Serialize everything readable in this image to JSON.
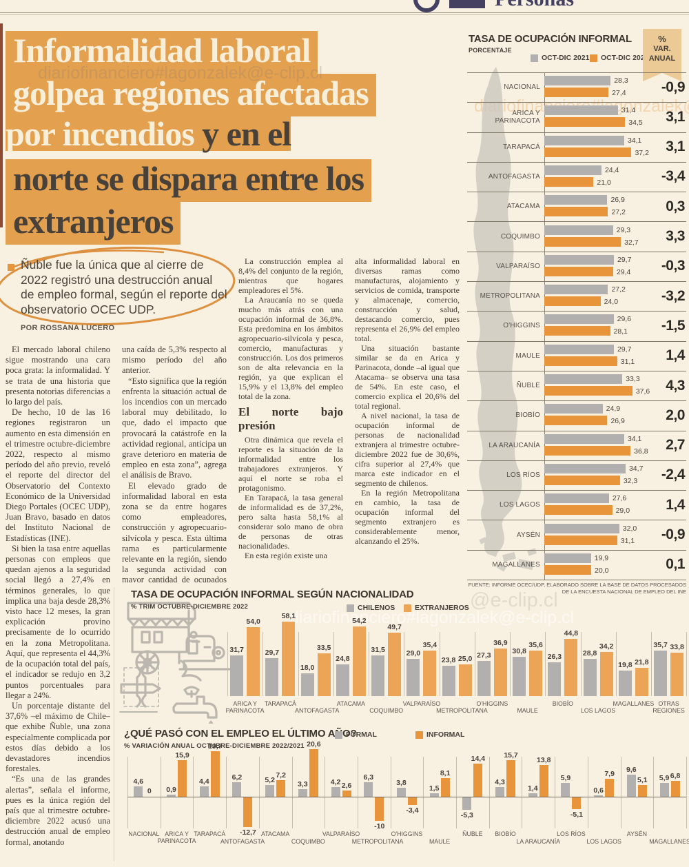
{
  "masthead": {
    "partial_text": "Personas"
  },
  "watermark": {
    "full": "diariofinanciero#lagonzalek@e-clip.cl",
    "short": "@e-clip.cl"
  },
  "colors": {
    "background": "#f8f1e2",
    "highlight": "#e3a04f",
    "bar_orange": "#e8943b",
    "bar_gray": "#b2b0ae",
    "banner_tan": "#ecca96"
  },
  "headline": {
    "line1": "Informalidad laboral",
    "line2": "golpea regiones afectadas",
    "line3a": "por incendios ",
    "line3b": "y en el",
    "line4": "norte se dispara entre los",
    "line5": "extranjeros"
  },
  "lead": {
    "text": "Ñuble fue la única que al cierre de 2022 registró una destrucción anual de empleo formal, según el reporte del observatorio OCEC UDP.",
    "byline": "POR ROSSANA LUCERO"
  },
  "article": {
    "columns": [
      {
        "paragraphs": [
          "El mercado laboral chileno sigue mostrando una cara poca grata: la informalidad. Y se trata de una historia que presenta notorias diferencias a lo largo del país.",
          "De hecho, 10 de las 16 regiones registraron un aumento en esta dimensión en el trimestre octubre-diciembre 2022, respecto al mismo período del año previo, reveló el reporte del director del Observatorio del Contexto Económico de la Universidad Diego Portales (OCEC UDP), Juan Bravo, basado en datos del Instituto Nacional de Estadísticas (INE).",
          "Si bien la tasa entre aquellas personas con empleos que quedan ajenos a la seguridad social llegó a 27,4% en términos generales, lo que implica una baja desde 28,3% visto hace 12 meses, la gran explicación provino precisamente de lo ocurrido en la zona Metropolitana. Aquí, que representa el 44,3% de la ocupación total del país, el indicador se redujo en 3,2 puntos porcentuales para llegar a 24%.",
          "Un porcentaje distante del 37,6% –el máximo de Chile– que exhibe Ñuble, una zona especialmente complicada por estos días debido a los devastadores incendios forestales.",
          "“Es una de las grandes alertas”, señala el informe, pues es la única región del país que al trimestre octubre-diciembre 2022 acusó una destrucción anual de empleo formal, anotando"
        ]
      },
      {
        "paragraphs": [
          "una caída de 5,3% respecto al mismo período del año anterior.",
          "“Esto significa que la región enfrenta la situación actual de los incendios con un mercado laboral muy debilitado, lo que, dado el impacto que provocará la catástrofe en la actividad regional, anticipa un grave deterioro en materia de empleo en esta zona”, agrega el análisis de Bravo.",
          "El elevado grado de informalidad laboral en esta zona se da entre hogares como empleadores, construcción y agropecuario-silvícola y pesca. Esta última rama es particularmente relevante en la región, siendo la segunda actividad con mayor cantidad de ocupados en la zona, un 17,2% del total."
        ]
      },
      {
        "paragraphs": [
          "La construcción emplea al 8,4% del conjunto de la región, mientras que hogares empleadores el 5%.",
          "La Araucanía no se queda mucho más atrás con una ocupación informal de 36,8%. Esta predomina en los ámbitos agropecuario-silvícola y pesca, comercio, manufacturas y construcción. Los dos primeros son de alta relevancia en la región, ya que explican el 15,9% y el 13,8% del empleo total de la zona."
        ],
        "heading": "El norte bajo presión",
        "paragraphs_after": [
          "Otra dinámica que revela el reporte es la situación de la informalidad entre los trabajadores extranjeros. Y aquí el norte se roba el protagonismo.",
          "En Tarapacá, la tasa general de informalidad es de 37,2%, pero salta hasta 58,1% al considerar solo mano de obra de personas de otras nacionalidades.",
          "En esta región existe una"
        ]
      },
      {
        "paragraphs": [
          "alta informalidad laboral en diversas ramas como manufacturas, alojamiento y servicios de comida, transporte y almacenaje, comercio, construcción y salud, destacando comercio, pues representa el 26,9% del empleo total.",
          "Una situación bastante similar se da en Arica y Parinacota, donde –al igual que Atacama– se observa una tasa de 54%. En este caso, el comercio explica el 20,6% del total regional.",
          "A nivel nacional, la tasa de ocupación informal de personas de nacionalidad extranjera al trimestre octubre-diciembre 2022 fue de 30,6%, cifra superior al 27,4% que marca este indicador en el segmento de chilenos.",
          "En la región Metropolitana en cambio, la tasa de ocupación informal del segmento extranjero es considerablemente menor, alcanzando el 25%."
        ]
      }
    ]
  },
  "illustration_icons": [
    "food-cart-icon",
    "sewing-machine-icon",
    "wrench-pencil-icon",
    "faucet-icon"
  ],
  "chart_data": [
    {
      "type": "bar",
      "orientation": "horizontal",
      "title": "TASA DE OCUPACIÓN INFORMAL",
      "subtitle": "PORCENTAJE",
      "legend": [
        "OCT-DIC 2021",
        "OCT-DIC 2022"
      ],
      "var_header_lines": [
        "%",
        "VAR.",
        "ANUAL"
      ],
      "categories": [
        "NACIONAL",
        "ARICA Y PARINACOTA",
        "TARAPACÁ",
        "ANTOFAGASTA",
        "ATACAMA",
        "COQUIMBO",
        "VALPARAÍSO",
        "METROPOLITANA",
        "O'HIGGINS",
        "MAULE",
        "ÑUBLE",
        "BIOBÍO",
        "LA ARAUCANÍA",
        "LOS RÍOS",
        "LOS LAGOS",
        "AYSÉN",
        "MAGALLANES"
      ],
      "series": [
        {
          "name": "OCT-DIC 2021",
          "color": "#b2b0ae",
          "values": [
            28.3,
            31.4,
            34.1,
            24.4,
            26.9,
            29.3,
            29.7,
            27.2,
            29.6,
            29.7,
            33.3,
            24.9,
            34.1,
            34.7,
            27.6,
            32.0,
            19.9
          ],
          "labels": [
            "28,3",
            "31,4",
            "34,1",
            "24,4",
            "26,9",
            "29,3",
            "29,7",
            "27,2",
            "29,6",
            "29,7",
            "33,3",
            "24,9",
            "34,1",
            "34,7",
            "27,6",
            "32,0",
            "19,9"
          ]
        },
        {
          "name": "OCT-DIC 2022",
          "color": "#e8943b",
          "values": [
            27.4,
            34.5,
            37.2,
            21.0,
            27.2,
            32.7,
            29.4,
            24.0,
            28.1,
            31.1,
            37.6,
            26.9,
            36.8,
            32.3,
            29.0,
            31.1,
            20.0
          ],
          "labels": [
            "27,4",
            "34,5",
            "37,2",
            "21,0",
            "27,2",
            "32,7",
            "29,4",
            "24,0",
            "28,1",
            "31,1",
            "37,6",
            "26,9",
            "36,8",
            "32,3",
            "29,0",
            "31,1",
            "20,0"
          ]
        }
      ],
      "var_anual": [
        "-0,9",
        "3,1",
        "3,1",
        "-3,4",
        "0,3",
        "3,3",
        "-0,3",
        "-3,2",
        "-1,5",
        "1,4",
        "4,3",
        "2,0",
        "2,7",
        "-2,4",
        "1,4",
        "-0,9",
        "0,1"
      ],
      "xlim": [
        0,
        40
      ],
      "source": "FUENTE: INFORME OCEC/UDP, ELABORADO SOBRE LA BASE DE DATOS PROCESADOS DE LA ENCUESTA NACIONAL DE EMPLEO DEL INE"
    },
    {
      "type": "bar",
      "orientation": "vertical",
      "title": "TASA DE OCUPACIÓN INFORMAL SEGÚN NACIONALIDAD",
      "subtitle": "% TRIM OCTUBRE-DICIEMBRE 2022",
      "legend": [
        "CHILENOS",
        "EXTRANJEROS"
      ],
      "categories": [
        "ARICA Y PARINACOTA",
        "TARAPACÁ",
        "ANTOFAGASTA",
        "ATACAMA",
        "COQUIMBO",
        "VALPARAÍSO",
        "METROPOLITANA",
        "O'HIGGINS",
        "MAULE",
        "BIOBÍO",
        "LOS LAGOS",
        "MAGALLANES",
        "OTRAS REGIONES"
      ],
      "stagger": [
        0,
        0,
        1,
        0,
        1,
        0,
        1,
        0,
        1,
        0,
        1,
        0,
        0
      ],
      "series": [
        {
          "name": "CHILENOS",
          "color": "#b2b0ae",
          "values": [
            31.7,
            29.7,
            18.0,
            24.8,
            31.5,
            29.0,
            23.8,
            27.3,
            30.8,
            26.3,
            28.8,
            19.8,
            35.7
          ],
          "labels": [
            "31,7",
            "29,7",
            "18,0",
            "24,8",
            "31,5",
            "29,0",
            "23,8",
            "27,3",
            "30,8",
            "26,3",
            "28,8",
            "19,8",
            "35,7"
          ]
        },
        {
          "name": "EXTRANJEROS",
          "color": "#eca557",
          "values": [
            54.0,
            58.1,
            33.5,
            54.2,
            49.7,
            35.4,
            25.0,
            36.9,
            35.6,
            44.8,
            34.2,
            21.8,
            33.8
          ],
          "labels": [
            "54,0",
            "58,1",
            "33,5",
            "54,2",
            "49,7",
            "35,4",
            "25,0",
            "36,9",
            "35,6",
            "44,8",
            "34,2",
            "21,8",
            "33,8"
          ]
        }
      ],
      "ylim": [
        0,
        60
      ]
    },
    {
      "type": "bar",
      "orientation": "vertical",
      "title": "¿QUÉ PASÓ CON EL EMPLEO EL ÚLTIMO AÑO?",
      "subtitle": "% VARIACIÓN ANUAL OCTUBRE-DICIEMBRE 2022/2021",
      "legend": [
        "FORMAL",
        "INFORMAL"
      ],
      "categories": [
        "NACIONAL",
        "ARICA Y PARINACOTA",
        "TARAPACÁ",
        "ANTOFAGASTA",
        "ATACAMA",
        "COQUIMBO",
        "VALPARAÍSO",
        "METROPOLITANA",
        "O'HIGGINS",
        "MAULE",
        "ÑUBLE",
        "BIOBÍO",
        "LA ARAUCANÍA",
        "LOS RÍOS",
        "LOS LAGOS",
        "AYSÉN",
        "MAGALLANES"
      ],
      "stagger": [
        0,
        0,
        0,
        1,
        0,
        1,
        0,
        1,
        0,
        1,
        0,
        0,
        1,
        0,
        1,
        0,
        1
      ],
      "series": [
        {
          "name": "FORMAL",
          "color": "#b2b0ae",
          "values": [
            4.6,
            0.9,
            4.4,
            6.2,
            5.2,
            3.3,
            4.2,
            6.3,
            3.8,
            1.5,
            -5.3,
            4.3,
            1.4,
            5.9,
            0.6,
            9.6,
            5.9
          ],
          "labels": [
            "4,6",
            "0,9",
            "4,4",
            "6,2",
            "5,2",
            "3,3",
            "4,2",
            "6,3",
            "3,8",
            "1,5",
            "-5,3",
            "4,3",
            "1,4",
            "5,9",
            "0,6",
            "9,6",
            "5,9"
          ]
        },
        {
          "name": "INFORMAL",
          "color": "#e8943b",
          "values": [
            0,
            15.9,
            19.7,
            -12.7,
            7.2,
            20.6,
            2.6,
            -10,
            -3.4,
            8.1,
            14.4,
            15.7,
            13.8,
            -5.1,
            7.9,
            5.1,
            6.8
          ],
          "labels": [
            "0",
            "15,9",
            "19,7",
            "-12,7",
            "7,2",
            "20,6",
            "2,6",
            "-10",
            "-3,4",
            "8,1",
            "14,4",
            "15,7",
            "13,8",
            "-5,1",
            "7,9",
            "5,1",
            "6,8"
          ]
        }
      ],
      "ylim": [
        -15,
        25
      ]
    }
  ]
}
